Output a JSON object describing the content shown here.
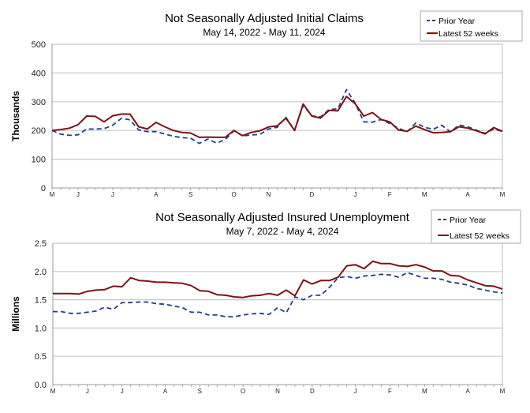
{
  "chart_data": [
    {
      "type": "line",
      "title": "Not Seasonally Adjusted Initial Claims",
      "subtitle": "May 14, 2022  - May 11, 2024",
      "ylabel": "Thousands",
      "xlabel": "",
      "ylim": [
        0,
        500
      ],
      "yticks": [
        "0",
        "100",
        "200",
        "300",
        "400",
        "500"
      ],
      "ytick_values": [
        0,
        100,
        200,
        300,
        400,
        500
      ],
      "xtick_labels": [
        "M",
        "J",
        "J",
        "A",
        "S",
        "O",
        "N",
        "D",
        "J",
        "F",
        "M",
        "A",
        "M"
      ],
      "xtick_weeks": [
        0,
        3,
        7,
        12,
        16,
        21,
        25,
        30,
        35,
        39,
        43,
        48,
        52
      ],
      "grid": true,
      "legend_position": "top-right",
      "colors": {
        "prior": "#1f3f8a",
        "latest": "#7b1416"
      },
      "series": [
        {
          "name": "Prior Year",
          "style": "dashed",
          "values": [
            200,
            187,
            183,
            185,
            205,
            205,
            206,
            218,
            242,
            237,
            202,
            196,
            196,
            188,
            180,
            175,
            173,
            155,
            170,
            156,
            168,
            199,
            181,
            184,
            186,
            205,
            211,
            246,
            200,
            287,
            251,
            247,
            273,
            275,
            342,
            295,
            230,
            229,
            238,
            224,
            208,
            195,
            226,
            211,
            204,
            218,
            195,
            219,
            213,
            201,
            190,
            205,
            197
          ]
        },
        {
          "name": "Latest 52 weeks",
          "style": "solid",
          "values": [
            200,
            203,
            208,
            220,
            250,
            249,
            230,
            251,
            257,
            257,
            213,
            205,
            228,
            213,
            200,
            193,
            191,
            176,
            177,
            176,
            176,
            200,
            182,
            193,
            199,
            212,
            216,
            243,
            200,
            292,
            250,
            243,
            270,
            268,
            318,
            293,
            250,
            262,
            238,
            230,
            202,
            197,
            215,
            203,
            192,
            193,
            196,
            213,
            208,
            199,
            188,
            210,
            197
          ]
        }
      ]
    },
    {
      "type": "line",
      "title": "Not Seasonally Adjusted Insured Unemployment",
      "subtitle": "May 7, 2022 - May 4, 2024",
      "ylabel": "Millions",
      "xlabel": "",
      "ylim": [
        0,
        2.5
      ],
      "yticks": [
        "0.0",
        "0.5",
        "1.0",
        "1.5",
        "2.0",
        "2.5"
      ],
      "ytick_values": [
        0,
        0.5,
        1.0,
        1.5,
        2.0,
        2.5
      ],
      "xtick_labels": [
        "M",
        "J",
        "J",
        "A",
        "S",
        "O",
        "N",
        "D",
        "J",
        "F",
        "M",
        "A",
        "M"
      ],
      "xtick_weeks": [
        0,
        4,
        8,
        13,
        17,
        22,
        26,
        30,
        35,
        39,
        43,
        48,
        52
      ],
      "grid": true,
      "legend_position": "top-right",
      "colors": {
        "prior": "#1f3f8a",
        "latest": "#7b1416"
      },
      "series": [
        {
          "name": "Prior Year",
          "style": "dashed",
          "values": [
            1.29,
            1.29,
            1.26,
            1.26,
            1.28,
            1.3,
            1.37,
            1.33,
            1.45,
            1.45,
            1.46,
            1.46,
            1.43,
            1.42,
            1.39,
            1.36,
            1.28,
            1.28,
            1.23,
            1.23,
            1.2,
            1.2,
            1.23,
            1.25,
            1.26,
            1.24,
            1.36,
            1.27,
            1.55,
            1.5,
            1.58,
            1.58,
            1.72,
            1.89,
            1.91,
            1.88,
            1.92,
            1.93,
            1.95,
            1.94,
            1.9,
            1.98,
            1.93,
            1.88,
            1.88,
            1.86,
            1.81,
            1.79,
            1.76,
            1.7,
            1.67,
            1.64,
            1.62
          ]
        },
        {
          "name": "Latest 52 weeks",
          "style": "solid",
          "values": [
            1.61,
            1.61,
            1.61,
            1.6,
            1.65,
            1.67,
            1.68,
            1.74,
            1.73,
            1.89,
            1.84,
            1.83,
            1.81,
            1.81,
            1.8,
            1.79,
            1.75,
            1.66,
            1.65,
            1.59,
            1.58,
            1.55,
            1.54,
            1.57,
            1.58,
            1.61,
            1.58,
            1.67,
            1.57,
            1.85,
            1.78,
            1.84,
            1.84,
            1.9,
            2.1,
            2.12,
            2.05,
            2.18,
            2.14,
            2.14,
            2.1,
            2.09,
            2.12,
            2.08,
            2.01,
            2.01,
            1.93,
            1.92,
            1.85,
            1.8,
            1.75,
            1.74,
            1.69
          ]
        }
      ]
    }
  ]
}
